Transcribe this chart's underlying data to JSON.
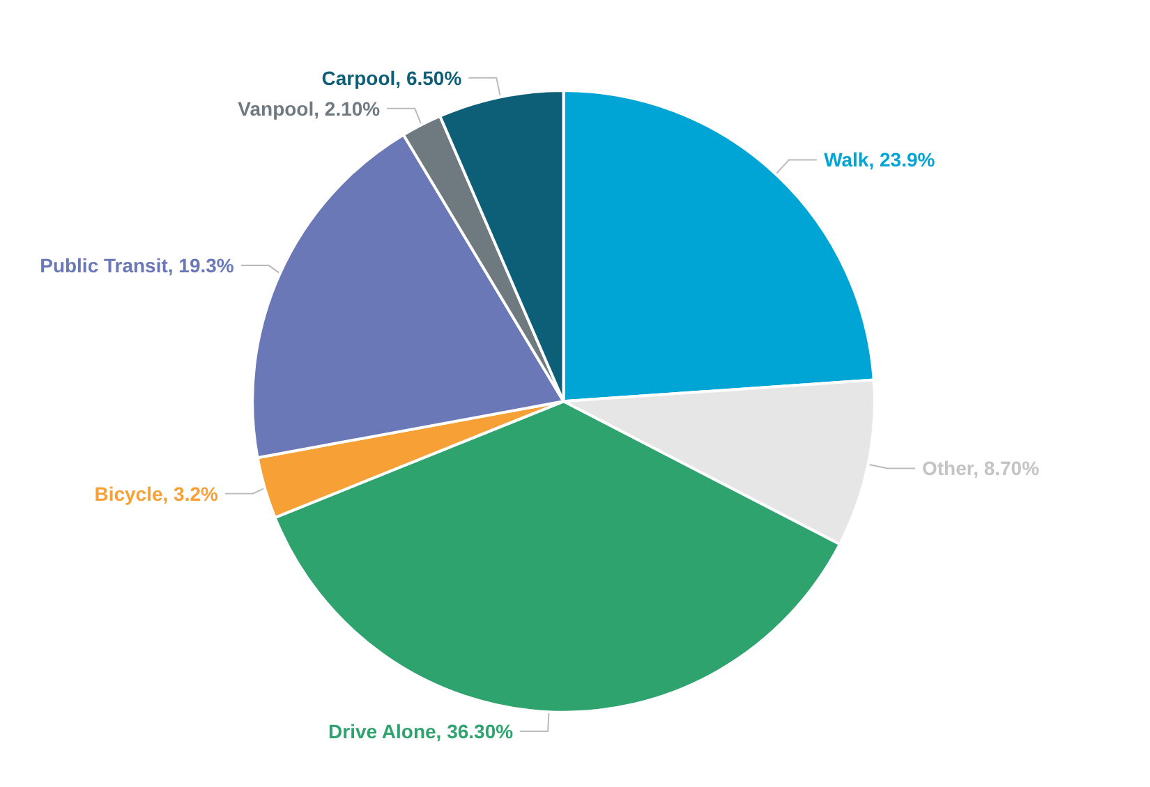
{
  "chart_data": {
    "type": "pie",
    "categories": [
      "Walk",
      "Other",
      "Drive Alone",
      "Bicycle",
      "Public Transit",
      "Vanpool",
      "Carpool"
    ],
    "values": [
      23.9,
      8.7,
      36.3,
      3.2,
      19.3,
      2.1,
      6.5
    ],
    "value_labels": [
      "23.9%",
      "8.70%",
      "36.30%",
      "3.2%",
      "19.3%",
      "2.10%",
      "6.50%"
    ],
    "colors": [
      "#00a5d6",
      "#e6e6e6",
      "#2ea36e",
      "#f7a035",
      "#6a78b8",
      "#6e7a80",
      "#0d5f78"
    ],
    "legend": false
  }
}
